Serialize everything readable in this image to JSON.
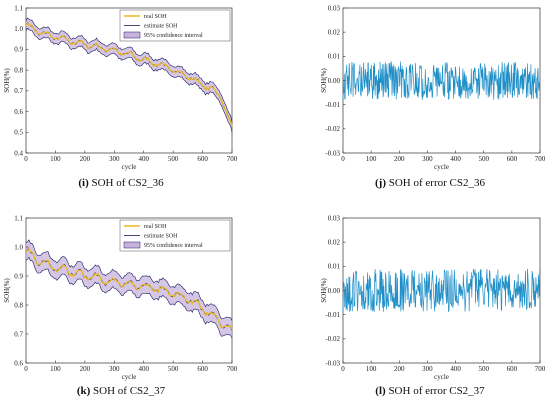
{
  "chart_data": [
    {
      "id": "i",
      "type": "line",
      "caption_letter": "(i)",
      "caption_text": " SOH of CS2_36",
      "xlabel": "cycle",
      "ylabel": "SOH(%)",
      "xlim": [
        0,
        700
      ],
      "ylim": [
        0.4,
        1.1
      ],
      "xticks": [
        0,
        100,
        200,
        300,
        400,
        500,
        600,
        700
      ],
      "yticks": [
        0.4,
        0.5,
        0.6,
        0.7,
        0.8,
        0.9,
        1.0,
        1.1
      ],
      "ytick_labels": [
        "0.4",
        "0.5",
        "0.6",
        "0.7",
        "0.8",
        "0.9",
        "1.0",
        "1.1"
      ],
      "legend": [
        "real SOH",
        "estimate SOH",
        "95% confidence interval"
      ],
      "legend_position": "top-right",
      "colors": {
        "real": "#e8b923",
        "estimate": "#1a1a5e",
        "band": "#c7b3dd"
      },
      "series": [
        {
          "name": "real SOH",
          "x": [
            0,
            25,
            50,
            100,
            150,
            200,
            250,
            300,
            350,
            400,
            450,
            500,
            550,
            600,
            640,
            660,
            680,
            700
          ],
          "y": [
            1.02,
            1.0,
            0.98,
            0.96,
            0.94,
            0.925,
            0.91,
            0.895,
            0.875,
            0.85,
            0.83,
            0.8,
            0.77,
            0.73,
            0.7,
            0.68,
            0.6,
            0.52
          ]
        }
      ],
      "band_halfwidth": 0.025
    },
    {
      "id": "j",
      "type": "line",
      "caption_letter": "(j)",
      "caption_text": " SOH of error CS2_36",
      "xlabel": "cycle",
      "ylabel": "SOH(%)",
      "xlim": [
        0,
        700
      ],
      "ylim": [
        -0.03,
        0.03
      ],
      "xticks": [
        0,
        100,
        200,
        300,
        400,
        500,
        600,
        700
      ],
      "yticks": [
        -0.03,
        -0.02,
        -0.01,
        0,
        0.01,
        0.02,
        0.03
      ],
      "ytick_labels": [
        "-0.03",
        "-0.02",
        "-0.01",
        "0.00",
        "0.01",
        "0.02",
        "0.03"
      ],
      "colors": {
        "line": "#1f8fc8"
      },
      "error_amplitude": 0.008
    },
    {
      "id": "k",
      "type": "line",
      "caption_letter": "(k)",
      "caption_text": " SOH of CS2_37",
      "xlabel": "cycle",
      "ylabel": "SOH(%)",
      "xlim": [
        0,
        700
      ],
      "ylim": [
        0.6,
        1.1
      ],
      "xticks": [
        0,
        100,
        200,
        300,
        400,
        500,
        600,
        700
      ],
      "yticks": [
        0.6,
        0.7,
        0.8,
        0.9,
        1.0,
        1.1
      ],
      "ytick_labels": [
        "0.6",
        "0.7",
        "0.8",
        "0.9",
        "1.0",
        "1.1"
      ],
      "legend": [
        "real SOH",
        "estimate SOH",
        "95% confidence interval"
      ],
      "legend_position": "top-right",
      "colors": {
        "real": "#e8b923",
        "estimate": "#1a1a5e",
        "band": "#c7b3dd"
      },
      "series": [
        {
          "name": "real SOH",
          "x": [
            0,
            25,
            50,
            100,
            150,
            200,
            250,
            300,
            350,
            400,
            450,
            500,
            550,
            600,
            650,
            700
          ],
          "y": [
            0.99,
            0.965,
            0.95,
            0.93,
            0.915,
            0.9,
            0.89,
            0.88,
            0.87,
            0.865,
            0.855,
            0.84,
            0.82,
            0.79,
            0.75,
            0.71
          ]
        }
      ],
      "band_halfwidth": 0.03
    },
    {
      "id": "l",
      "type": "line",
      "caption_letter": "(l)",
      "caption_text": " SOH of error CS2_37",
      "xlabel": "cycle",
      "ylabel": "SOH(%)",
      "xlim": [
        0,
        700
      ],
      "ylim": [
        -0.03,
        0.03
      ],
      "xticks": [
        0,
        100,
        200,
        300,
        400,
        500,
        600,
        700
      ],
      "yticks": [
        -0.03,
        -0.02,
        -0.01,
        0,
        0.01,
        0.02,
        0.03
      ],
      "ytick_labels": [
        "-0.03",
        "-0.02",
        "-0.01",
        "0.00",
        "0.01",
        "0.02",
        "0.03"
      ],
      "colors": {
        "line": "#1f8fc8"
      },
      "error_amplitude": 0.009
    }
  ]
}
